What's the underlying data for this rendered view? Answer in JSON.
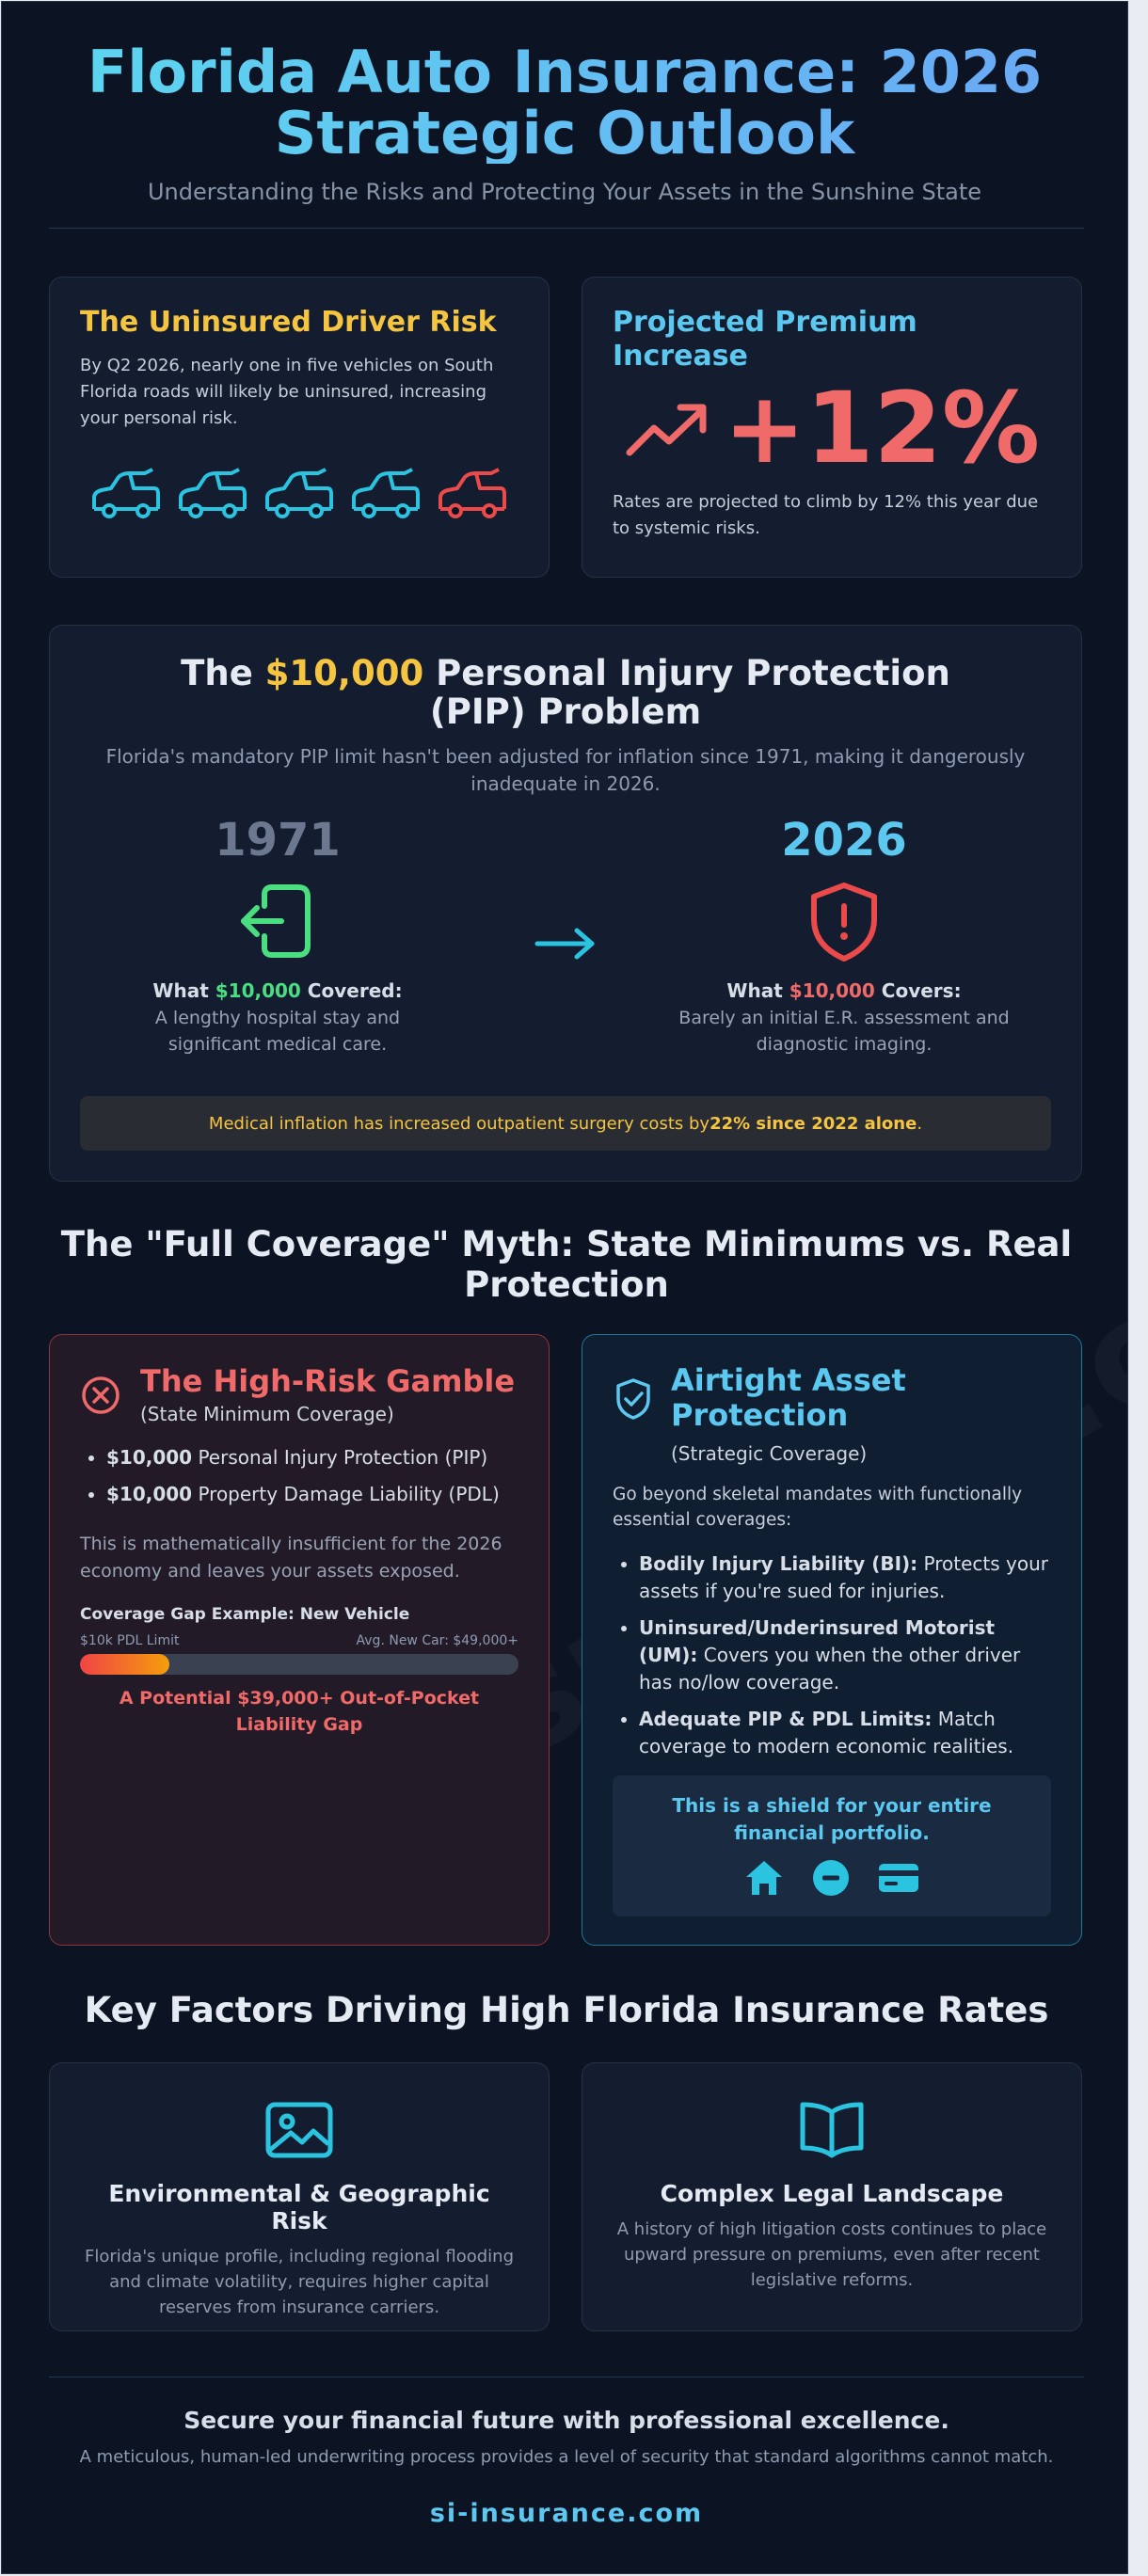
{
  "header": {
    "title_line1": "Florida Auto Insurance: 2026",
    "title_line2": "Strategic Outlook",
    "subtitle": "Understanding the Risks and Protecting Your Assets in the Sunshine State"
  },
  "uninsured": {
    "title": "The Uninsured Driver Risk",
    "text": "By Q2 2026, nearly one in five vehicles on South Florida roads will likely be uninsured, increasing your personal risk.",
    "vehicles_total": 5,
    "vehicles_uninsured": 1
  },
  "premium": {
    "title": "Projected Premium Increase",
    "value": "+12%",
    "text": "Rates are projected to climb by 12% this year due to systemic risks."
  },
  "pip": {
    "title_pre": "The ",
    "title_amount": "$10,000",
    "title_post": " Personal Injury Protection (PIP) Problem",
    "intro": "Florida's mandatory PIP limit hasn't been adjusted for inflation since 1971, making it dangerously inadequate in 2026.",
    "then": {
      "year": "1971",
      "label_pre": "What ",
      "amount": "$10,000",
      "label_post": " Covered:",
      "desc": "A lengthy hospital stay and significant medical care."
    },
    "now": {
      "year": "2026",
      "label_pre": "What ",
      "amount": "$10,000",
      "label_post": " Covers:",
      "desc": "Barely an initial E.R. assessment and diagnostic imaging."
    },
    "note_pre": "Medical inflation has increased outpatient surgery costs by ",
    "note_bold": "22% since 2022 alone",
    "note_post": "."
  },
  "myth": {
    "title": "The \"Full Coverage\" Myth: State Minimums vs. Real Protection",
    "gamble": {
      "title": "The High-Risk Gamble",
      "subtitle": "(State Minimum Coverage)",
      "items": [
        {
          "bold": "$10,000",
          "text": " Personal Injury Protection (PIP)"
        },
        {
          "bold": "$10,000",
          "text": " Property Damage Liability (PDL)"
        }
      ],
      "text": "This is mathematically insufficient for the 2026 economy and leaves your assets exposed.",
      "gap_title": "Coverage Gap Example: New Vehicle",
      "gap_left": "$10k PDL Limit",
      "gap_right": "Avg. New Car: $49,000+",
      "gap_fill_fraction": 0.204,
      "gap_result": "A Potential $39,000+ Out-of-Pocket Liability Gap"
    },
    "airtight": {
      "title": "Airtight Asset Protection",
      "subtitle": "(Strategic Coverage)",
      "intro": "Go beyond skeletal mandates with functionally essential coverages:",
      "items": [
        {
          "bold": "Bodily Injury Liability (BI):",
          "text": " Protects your assets if you're sued for injuries."
        },
        {
          "bold": "Uninsured/Underinsured Motorist (UM):",
          "text": " Covers you when the other driver has no/low coverage."
        },
        {
          "bold": "Adequate PIP & PDL Limits:",
          "text": " Match coverage to modern economic realities."
        }
      ],
      "shield_text": "This is a shield for your entire financial portfolio."
    }
  },
  "factors": {
    "title": "Key Factors Driving High Florida Insurance Rates",
    "env": {
      "title": "Environmental & Geographic Risk",
      "text": "Florida's unique profile, including regional flooding and climate volatility, requires higher capital reserves from insurance carriers."
    },
    "legal": {
      "title": "Complex Legal Landscape",
      "text": "A history of high litigation costs continues to place upward pressure on premiums, even after recent legislative reforms."
    }
  },
  "footer": {
    "headline": "Secure your financial future with professional excellence.",
    "text": "A meticulous, human-led underwriting process provides a level of security that standard algorithms cannot match.",
    "url": "si-insurance.com"
  },
  "colors": {
    "background": "#0c1424",
    "accent_cyan": "#5cc8f0",
    "accent_yellow": "#f5c542",
    "danger_red": "#f06a6a",
    "green": "#4ade80"
  }
}
